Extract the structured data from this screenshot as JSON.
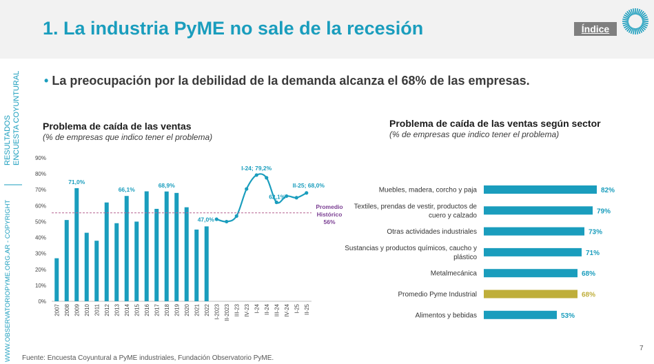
{
  "header": {
    "title": "1. La industria PyME no sale de la recesión",
    "index_label": "Índice"
  },
  "side": {
    "line1": "RESULTADOS",
    "line2": "ENCUESTA COYUNTURAL",
    "copyright": "WWW.OBSERVATORIOPYME.ORG.AR - COPYRIGHT"
  },
  "bullet": {
    "mark": "•",
    "text": "La preocupación por la debilidad de la demanda alcanza el 68% de las empresas."
  },
  "left_chart": {
    "title": "Problema de caída de las ventas",
    "subtitle": "(% de empresas que indico tener el problema)"
  },
  "right_chart": {
    "title": "Problema de caída de las ventas según sector",
    "subtitle": "(% de empresas que indico tener el problema)"
  },
  "footer": {
    "source": "Fuente: Encuesta Coyuntural a PyME industriales, Fundación Observatorio PyME.",
    "page": "7"
  },
  "colors": {
    "accent": "#1a9dbd",
    "highlight": "#bfae3a",
    "avg_line": "#b5608f",
    "avg_label": "#7b3f93"
  },
  "chart_data": [
    {
      "type": "bar",
      "title": "Problema de caída de las ventas",
      "subtitle": "(% de empresas que indico tener el problema)",
      "ylim": [
        0,
        90
      ],
      "yticks": [
        "0%",
        "10%",
        "20%",
        "30%",
        "40%",
        "50%",
        "60%",
        "70%",
        "80%",
        "90%"
      ],
      "bars": {
        "categories": [
          "2007",
          "2008",
          "2009",
          "2010",
          "2011",
          "2012",
          "2013",
          "2014",
          "2015",
          "2016",
          "2017",
          "2018",
          "2019",
          "2020",
          "2021",
          "2022"
        ],
        "values": [
          27,
          51,
          71,
          43,
          38,
          62,
          49,
          66.1,
          50,
          69,
          58,
          68.9,
          68,
          59,
          45,
          47
        ]
      },
      "line": {
        "categories": [
          "I-2023",
          "II-2023",
          "III-23",
          "IV-23",
          "I-24",
          "II-24",
          "III-24",
          "IV-24",
          "I-25",
          "II-25"
        ],
        "values": [
          51.5,
          50,
          53.5,
          70.5,
          79.2,
          77.5,
          62.1,
          66,
          65,
          68
        ]
      },
      "labels": [
        {
          "category": "2009",
          "text": "71,0%"
        },
        {
          "category": "2014",
          "text": "66,1%"
        },
        {
          "category": "2018",
          "text": "68,9%"
        },
        {
          "category": "2022",
          "text": "47,0%"
        },
        {
          "category": "I-24",
          "text": "I-24; 79,2%"
        },
        {
          "category": "III-24",
          "text": "62,1%"
        },
        {
          "category": "II-25",
          "text": "II-25; 68,0%"
        }
      ],
      "average": {
        "value": 55.5,
        "label_lines": [
          "Promedio",
          "Histórico",
          "56%"
        ]
      }
    },
    {
      "type": "bar",
      "orientation": "horizontal",
      "title": "Problema de caída de las ventas según sector",
      "subtitle": "(% de empresas que indico tener el problema)",
      "categories": [
        [
          "Muebles, madera, corcho y paja"
        ],
        [
          "Textiles, prendas de vestir, productos de",
          "cuero y calzado"
        ],
        [
          "Otras actividades industriales"
        ],
        [
          "Sustancias y productos químicos, caucho y",
          "plástico"
        ],
        [
          "Metalmecánica"
        ],
        [
          "Promedio Pyme Industrial"
        ],
        [
          "Alimentos y bebidas"
        ]
      ],
      "values": [
        82,
        79,
        73,
        71,
        68,
        68,
        53
      ],
      "value_labels": [
        "82%",
        "79%",
        "73%",
        "71%",
        "68%",
        "68%",
        "53%"
      ],
      "highlight_index": 5
    }
  ]
}
